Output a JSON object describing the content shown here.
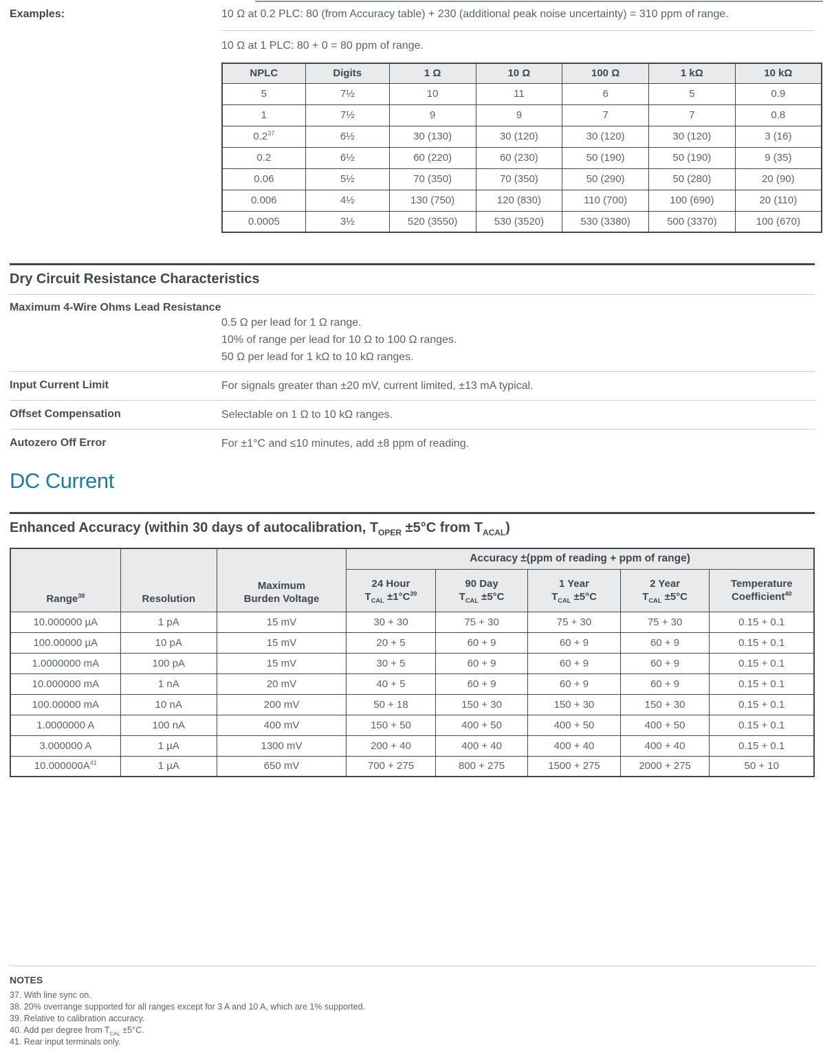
{
  "examples": {
    "label": "Examples:",
    "lines": [
      "10 Ω at 0.2 PLC: 80 (from Accuracy table) + 230 (additional peak noise uncertainty) = 310 ppm of range.",
      "10 Ω at 1 PLC: 80 + 0 = 80 ppm of range."
    ]
  },
  "nplc_table": {
    "headers": [
      "NPLC",
      "Digits",
      "1 Ω",
      "10 Ω",
      "100 Ω",
      "1 kΩ",
      "10 kΩ"
    ],
    "rows": [
      [
        "5",
        "7½",
        "10",
        "11",
        "6",
        "5",
        "0.9"
      ],
      [
        "1",
        "7½",
        "9",
        "9",
        "7",
        "7",
        "0.8"
      ],
      [
        "0.2^37^",
        "6½",
        "30 (130)",
        "30 (120)",
        "30 (120)",
        "30 (120)",
        "3 (16)"
      ],
      [
        "0.2",
        "6½",
        "60 (220)",
        "60 (230)",
        "50 (190)",
        "50 (190)",
        "9 (35)"
      ],
      [
        "0.06",
        "5½",
        "70 (350)",
        "70 (350)",
        "50 (290)",
        "50 (280)",
        "20 (90)"
      ],
      [
        "0.006",
        "4½",
        "130 (750)",
        "120 (830)",
        "110 (700)",
        "100 (690)",
        "20 (110)"
      ],
      [
        "0.0005",
        "3½",
        "520 (3550)",
        "530 (3520)",
        "530 (3380)",
        "500 (3370)",
        "100 (670)"
      ]
    ]
  },
  "dry_circuit": {
    "title": "Dry Circuit Resistance Characteristics",
    "specs": [
      {
        "label": "Maximum 4-Wire Ohms Lead Resistance",
        "values": [
          "0.5 Ω per lead for 1 Ω range.",
          "10% of range per lead for 10 Ω to 100 Ω ranges.",
          "50 Ω per lead for 1 kΩ to 10 kΩ ranges."
        ]
      },
      {
        "label": "Input Current Limit",
        "values": [
          "For signals greater than ±20 mV, current limited, ±13 mA typical."
        ]
      },
      {
        "label": "Offset Compensation",
        "values": [
          "Selectable on 1 Ω to 10 kΩ ranges."
        ]
      },
      {
        "label": "Autozero Off Error",
        "values": [
          "For ±1°C and ≤10 minutes, add ±8 ppm of reading."
        ]
      }
    ]
  },
  "dc_current": {
    "title": "DC Current"
  },
  "enhanced_accuracy": {
    "title": "Enhanced Accuracy (within 30 days of autocalibration, T~OPER~ ±5°C from T~ACAL~)",
    "table": {
      "span_header": "Accuracy ±(ppm of reading + ppm of range)",
      "fixed_headers": [
        "Range^38^",
        "Resolution",
        "Maximum\nBurden Voltage"
      ],
      "accuracy_headers": [
        "24 Hour\nT~CAL~ ±1°C^39^",
        "90 Day\nT~CAL~ ±5°C",
        "1 Year\nT~CAL~ ±5°C",
        "2 Year\nT~CAL~ ±5°C",
        "Temperature\nCoefficient^40^"
      ],
      "rows": [
        [
          "10.000000 µA",
          "1 pA",
          "15 mV",
          "30 + 30",
          "75 + 30",
          "75 + 30",
          "75 + 30",
          "0.15 + 0.1"
        ],
        [
          "100.00000 µA",
          "10 pA",
          "15 mV",
          "20 + 5",
          "60 + 9",
          "60 + 9",
          "60 + 9",
          "0.15 + 0.1"
        ],
        [
          "1.0000000 mA",
          "100 pA",
          "15 mV",
          "30 + 5",
          "60 + 9",
          "60 + 9",
          "60 + 9",
          "0.15 + 0.1"
        ],
        [
          "10.000000 mA",
          "1 nA",
          "20 mV",
          "40 + 5",
          "60 + 9",
          "60 + 9",
          "60 + 9",
          "0.15 + 0.1"
        ],
        [
          "100.00000 mA",
          "10 nA",
          "200 mV",
          "50 + 18",
          "150 + 30",
          "150 + 30",
          "150 + 30",
          "0.15 + 0.1"
        ],
        [
          "1.0000000 A",
          "100 nA",
          "400 mV",
          "150 + 50",
          "400 + 50",
          "400 + 50",
          "400 + 50",
          "0.15 + 0.1"
        ],
        [
          "3.000000 A",
          "1 µA",
          "1300 mV",
          "200 + 40",
          "400 + 40",
          "400 + 40",
          "400 + 40",
          "0.15 + 0.1"
        ],
        [
          "10.000000A^41^",
          "1 µA",
          "650 mV",
          "700 + 275",
          "800 + 275",
          "1500 + 275",
          "2000 + 275",
          "50 + 10"
        ]
      ]
    }
  },
  "notes": {
    "title": "NOTES",
    "items": [
      "37. With line sync on.",
      "38. 20% overrange supported for all ranges except for 3 A and 10 A, which are 1% supported.",
      "39. Relative to calibration accuracy.",
      "40. Add per degree from T~CAL~ ±5°C.",
      "41. Rear input terminals only."
    ]
  },
  "colors": {
    "accent": "#1c7ba0",
    "text": "#59626c",
    "heading": "#3f474e",
    "table_border": "#40484e",
    "header_bg": "#e9eaeb",
    "rule_light": "#c9cccf"
  }
}
